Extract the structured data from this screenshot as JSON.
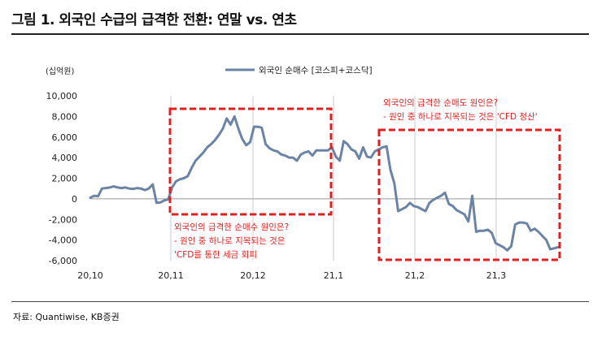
{
  "title": "그림 1. 외국인 수급의 급격한 전환: 연말 vs. 연초",
  "source": "자료: Quantiwise, KB증권",
  "colors": {
    "line": "#6b84a6",
    "highlight": "#e02020",
    "grid": "#cccccc"
  },
  "chart_data": {
    "type": "line",
    "unit": "(십억원)",
    "ylim": [
      -6000,
      10000
    ],
    "y_ticks": [
      "10,000",
      "8,000",
      "6,000",
      "4,000",
      "2,000",
      "0",
      "-2,000",
      "-4,000",
      "-6,000"
    ],
    "x_ticks": [
      "20,10",
      "20,11",
      "20,12",
      "21,1",
      "21,2",
      "21,3"
    ],
    "legend_position": "top-center",
    "grid": "vertical lines at month boundaries",
    "series": [
      {
        "name": "외국인 순매수 [코스피+코스닥]",
        "points": [
          [
            0,
            100
          ],
          [
            1,
            300
          ],
          [
            2,
            250
          ],
          [
            3,
            1000
          ],
          [
            4,
            1050
          ],
          [
            5,
            1100
          ],
          [
            6,
            1200
          ],
          [
            7,
            1100
          ],
          [
            8,
            1050
          ],
          [
            9,
            1100
          ],
          [
            10,
            1000
          ],
          [
            11,
            950
          ],
          [
            12,
            1050
          ],
          [
            13,
            1000
          ],
          [
            14,
            850
          ],
          [
            15,
            1000
          ],
          [
            16,
            1400
          ],
          [
            17,
            -400
          ],
          [
            18,
            -350
          ],
          [
            19,
            -150
          ],
          [
            20,
            -50
          ],
          [
            21,
            1100
          ],
          [
            22,
            1700
          ],
          [
            23,
            1900
          ],
          [
            24,
            2000
          ],
          [
            25,
            2200
          ],
          [
            26,
            3000
          ],
          [
            27,
            3700
          ],
          [
            28,
            4100
          ],
          [
            29,
            4500
          ],
          [
            30,
            5000
          ],
          [
            31,
            5300
          ],
          [
            32,
            5700
          ],
          [
            33,
            6200
          ],
          [
            34,
            6800
          ],
          [
            35,
            7800
          ],
          [
            36,
            7200
          ],
          [
            37,
            8000
          ],
          [
            38,
            6800
          ],
          [
            39,
            5800
          ],
          [
            40,
            5200
          ],
          [
            41,
            5500
          ],
          [
            42,
            7000
          ],
          [
            43,
            7000
          ],
          [
            44,
            6900
          ],
          [
            45,
            5300
          ],
          [
            46,
            4900
          ],
          [
            47,
            4700
          ],
          [
            48,
            4600
          ],
          [
            49,
            4300
          ],
          [
            50,
            4200
          ],
          [
            51,
            4000
          ],
          [
            52,
            4000
          ],
          [
            53,
            3700
          ],
          [
            54,
            4300
          ],
          [
            55,
            4500
          ],
          [
            56,
            4600
          ],
          [
            57,
            4200
          ],
          [
            58,
            4700
          ],
          [
            59,
            4700
          ],
          [
            60,
            4700
          ],
          [
            61,
            4700
          ],
          [
            62,
            5000
          ],
          [
            63,
            4100
          ],
          [
            64,
            3700
          ],
          [
            65,
            5600
          ],
          [
            66,
            5300
          ],
          [
            67,
            4800
          ],
          [
            68,
            4600
          ],
          [
            69,
            3900
          ],
          [
            70,
            5000
          ],
          [
            71,
            4100
          ],
          [
            72,
            4000
          ],
          [
            73,
            4600
          ],
          [
            74,
            4800
          ],
          [
            75,
            5000
          ],
          [
            76,
            5100
          ],
          [
            77,
            2800
          ],
          [
            78,
            1500
          ],
          [
            79,
            -1200
          ],
          [
            80,
            -1000
          ],
          [
            81,
            -800
          ],
          [
            82,
            -400
          ],
          [
            83,
            -700
          ],
          [
            84,
            -800
          ],
          [
            85,
            -1000
          ],
          [
            86,
            -1200
          ],
          [
            87,
            -400
          ],
          [
            88,
            -100
          ],
          [
            89,
            100
          ],
          [
            90,
            300
          ],
          [
            91,
            600
          ],
          [
            92,
            -500
          ],
          [
            93,
            -700
          ],
          [
            94,
            -1100
          ],
          [
            95,
            -1300
          ],
          [
            96,
            -1500
          ],
          [
            97,
            -2200
          ],
          [
            98,
            300
          ],
          [
            99,
            -3200
          ],
          [
            100,
            -3100
          ],
          [
            101,
            -3100
          ],
          [
            102,
            -3000
          ],
          [
            103,
            -3300
          ],
          [
            104,
            -4300
          ],
          [
            105,
            -4500
          ],
          [
            106,
            -4700
          ],
          [
            107,
            -5000
          ],
          [
            108,
            -4600
          ],
          [
            109,
            -2500
          ],
          [
            110,
            -2300
          ],
          [
            111,
            -2300
          ],
          [
            112,
            -2400
          ],
          [
            113,
            -3100
          ],
          [
            114,
            -2900
          ],
          [
            115,
            -3200
          ],
          [
            116,
            -3600
          ],
          [
            117,
            -4000
          ],
          [
            118,
            -4900
          ],
          [
            119,
            -4800
          ],
          [
            120,
            -4700
          ]
        ]
      }
    ],
    "annotations": [
      {
        "lines": [
          "외국인의 급격한 순매수 원인은?",
          "- 원인 중 하나로 지목되는 것은",
          "'CFD를 통한 세금 회피"
        ]
      },
      {
        "lines": [
          "외국인의 급격한 순매도 원인은?",
          "- 원인 중 하나로 지목되는 것은 'CFD 청산'"
        ]
      }
    ]
  }
}
